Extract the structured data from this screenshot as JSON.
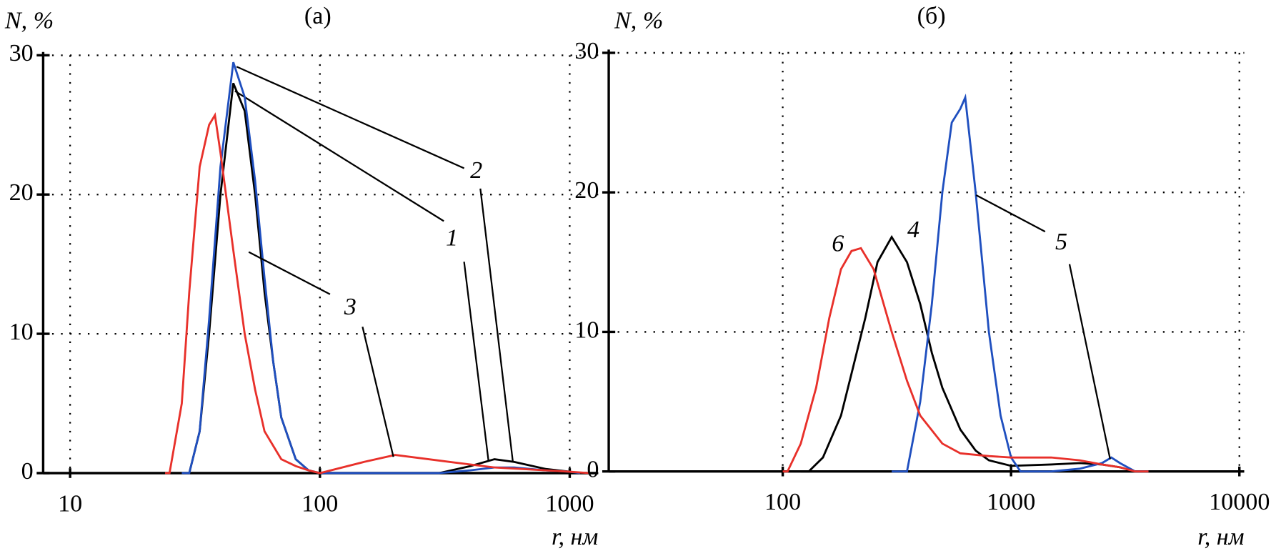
{
  "chart_data": [
    {
      "type": "line",
      "title": "(а)",
      "ylabel": "N, %",
      "xlabel": "r, нм",
      "xscale": "log",
      "grid": true,
      "xlim": [
        7.8,
        1300
      ],
      "xticks": [
        10,
        100,
        1000
      ],
      "ylim": [
        0,
        30
      ],
      "yticks": [
        0,
        10,
        20,
        30
      ],
      "series": [
        {
          "name": "1",
          "color": "#000000",
          "x": [
            28,
            30,
            33,
            36,
            40,
            45,
            50,
            55,
            60,
            65,
            70,
            80,
            90,
            100,
            200,
            300,
            400,
            500,
            600,
            800,
            1000,
            1100
          ],
          "values": [
            0,
            0,
            3,
            10,
            20,
            28,
            26,
            20,
            13,
            8,
            4,
            1,
            0.2,
            0,
            0,
            0,
            0.5,
            1,
            0.8,
            0.3,
            0.1,
            0
          ]
        },
        {
          "name": "2",
          "color": "#1f4fbf",
          "x": [
            28,
            30,
            33,
            36,
            40,
            45,
            50,
            55,
            60,
            65,
            70,
            80,
            90,
            100,
            200,
            300,
            400,
            500,
            600,
            800,
            1000,
            1100
          ],
          "values": [
            0,
            0,
            3,
            11,
            22,
            29.5,
            27,
            21,
            14,
            8,
            4,
            1,
            0.2,
            0,
            0,
            0,
            0.2,
            0.4,
            0.4,
            0.2,
            0.1,
            0
          ]
        },
        {
          "name": "3",
          "color": "#e8302a",
          "x": [
            24,
            25,
            28,
            30,
            33,
            36,
            38,
            40,
            45,
            50,
            55,
            60,
            70,
            80,
            90,
            100,
            150,
            200,
            300,
            500,
            800,
            1000,
            1200
          ],
          "values": [
            0,
            0,
            5,
            13,
            22,
            25,
            25.7,
            23,
            16,
            10,
            6,
            3,
            1,
            0.5,
            0.2,
            0,
            0.8,
            1.3,
            0.9,
            0.4,
            0.2,
            0.1,
            0
          ]
        }
      ]
    },
    {
      "type": "line",
      "title": "(б)",
      "ylabel": "N, %",
      "xlabel": "r, нм",
      "xscale": "log",
      "grid": true,
      "xlim": [
        17.3,
        10500
      ],
      "xticks": [
        100,
        1000,
        10000
      ],
      "ylim": [
        0,
        30
      ],
      "yticks": [
        0,
        10,
        20,
        30
      ],
      "series": [
        {
          "name": "4",
          "color": "#000000",
          "x": [
            120,
            130,
            150,
            180,
            200,
            230,
            260,
            300,
            350,
            400,
            450,
            500,
            600,
            700,
            800,
            1000,
            1500,
            2000,
            2500,
            3000,
            3500,
            4000
          ],
          "values": [
            0,
            0,
            1,
            4,
            7,
            11,
            15,
            16.8,
            15,
            12,
            8.5,
            6,
            3,
            1.5,
            0.8,
            0.4,
            0.5,
            0.6,
            0.5,
            0.3,
            0,
            0
          ]
        },
        {
          "name": "5",
          "color": "#1f4fbf",
          "x": [
            300,
            350,
            400,
            450,
            500,
            550,
            600,
            630,
            700,
            800,
            900,
            1000,
            1100,
            1500,
            2000,
            2500,
            2750,
            3000,
            3500,
            4000
          ],
          "values": [
            0,
            0,
            5,
            12,
            20,
            25,
            26,
            26.8,
            20,
            10,
            4,
            1,
            0,
            0,
            0.2,
            0.6,
            1,
            0.6,
            0,
            0
          ]
        },
        {
          "name": "6",
          "color": "#e8302a",
          "x": [
            100,
            105,
            120,
            140,
            160,
            180,
            200,
            220,
            250,
            300,
            350,
            400,
            500,
            600,
            800,
            1000,
            1500,
            2000,
            2500,
            3000,
            3500,
            4000
          ],
          "values": [
            0,
            0,
            2,
            6,
            11,
            14.5,
            15.8,
            16,
            14.5,
            10,
            6.5,
            4,
            2,
            1.3,
            1.1,
            1,
            1,
            0.8,
            0.5,
            0.3,
            0,
            0
          ]
        }
      ]
    }
  ]
}
